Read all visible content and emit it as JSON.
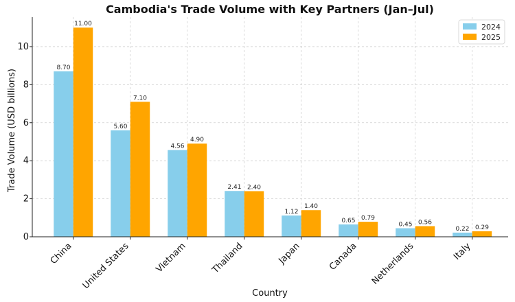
{
  "chart_data": {
    "type": "bar",
    "title": "Cambodia's Trade Volume with Key Partners (Jan–Jul)",
    "xlabel": "Country",
    "ylabel": "Trade Volume (USD billions)",
    "categories": [
      "China",
      "United States",
      "Vietnam",
      "Thailand",
      "Japan",
      "Canada",
      "Netherlands",
      "Italy"
    ],
    "series": [
      {
        "name": "2024",
        "color": "#87CEEB",
        "values": [
          8.7,
          5.6,
          4.56,
          2.41,
          1.12,
          0.65,
          0.45,
          0.22
        ],
        "labels": [
          "8.70",
          "5.60",
          "4.56",
          "2.41",
          "1.12",
          "0.65",
          "0.45",
          "0.22"
        ]
      },
      {
        "name": "2025",
        "color": "#FFA500",
        "values": [
          11.0,
          7.1,
          4.9,
          2.4,
          1.4,
          0.79,
          0.56,
          0.29
        ],
        "labels": [
          "11.00",
          "7.10",
          "4.90",
          "2.40",
          "1.40",
          "0.79",
          "0.56",
          "0.29"
        ]
      }
    ],
    "ylim": [
      0,
      11.55
    ],
    "yticks": [
      0,
      2,
      4,
      6,
      8,
      10
    ],
    "grid": true,
    "legend": "top-right"
  }
}
